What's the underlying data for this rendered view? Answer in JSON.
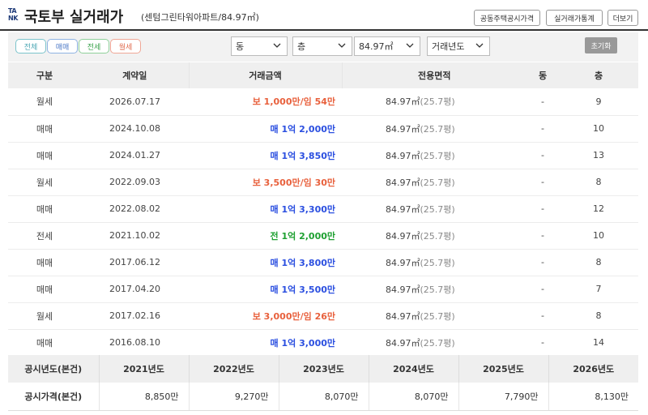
{
  "header": {
    "logo_top": "TA",
    "logo_bottom": "NK",
    "title": "국토부 실거래가",
    "subtitle": "(센텀그린타워아파트/84.97㎡)",
    "buttons": [
      "공동주택공시가격",
      "실거래가통계",
      "더보기"
    ]
  },
  "filters": {
    "chips": [
      {
        "label": "전체",
        "color": "#4ea8b5",
        "border": "#7cc4cc"
      },
      {
        "label": "매매",
        "color": "#4d7ac7",
        "border": "#8fb3e3"
      },
      {
        "label": "전세",
        "color": "#38a24a",
        "border": "#8fd09a"
      },
      {
        "label": "월세",
        "color": "#e06c50",
        "border": "#efa796"
      }
    ],
    "selects": {
      "dong": "동",
      "floor": "층",
      "area": "84.97㎡",
      "year": "거래년도"
    },
    "reset_label": "초기화"
  },
  "table": {
    "headers": [
      "구분",
      "계약일",
      "거래금액",
      "전용면적",
      "동",
      "층"
    ],
    "rows": [
      {
        "type": "월세",
        "date": "2026.07.17",
        "price": "보 1,000만/임 54만",
        "kind": "monthly",
        "area": "84.97㎡",
        "pyeong": "(25.7평)",
        "dong": "-",
        "floor": "9"
      },
      {
        "type": "매매",
        "date": "2024.10.08",
        "price": "매 1억 2,000만",
        "kind": "sale",
        "area": "84.97㎡",
        "pyeong": "(25.7평)",
        "dong": "-",
        "floor": "10"
      },
      {
        "type": "매매",
        "date": "2024.01.27",
        "price": "매 1억 3,850만",
        "kind": "sale",
        "area": "84.97㎡",
        "pyeong": "(25.7평)",
        "dong": "-",
        "floor": "13"
      },
      {
        "type": "월세",
        "date": "2022.09.03",
        "price": "보 3,500만/임 30만",
        "kind": "monthly",
        "area": "84.97㎡",
        "pyeong": "(25.7평)",
        "dong": "-",
        "floor": "8"
      },
      {
        "type": "매매",
        "date": "2022.08.02",
        "price": "매 1억 3,300만",
        "kind": "sale",
        "area": "84.97㎡",
        "pyeong": "(25.7평)",
        "dong": "-",
        "floor": "12"
      },
      {
        "type": "전세",
        "date": "2021.10.02",
        "price": "전 1억 2,000만",
        "kind": "jeonse",
        "area": "84.97㎡",
        "pyeong": "(25.7평)",
        "dong": "-",
        "floor": "10"
      },
      {
        "type": "매매",
        "date": "2017.06.12",
        "price": "매 1억 3,800만",
        "kind": "sale",
        "area": "84.97㎡",
        "pyeong": "(25.7평)",
        "dong": "-",
        "floor": "8"
      },
      {
        "type": "매매",
        "date": "2017.04.20",
        "price": "매 1억 3,500만",
        "kind": "sale",
        "area": "84.97㎡",
        "pyeong": "(25.7평)",
        "dong": "-",
        "floor": "7"
      },
      {
        "type": "월세",
        "date": "2017.02.16",
        "price": "보 3,000만/임 26만",
        "kind": "monthly",
        "area": "84.97㎡",
        "pyeong": "(25.7평)",
        "dong": "-",
        "floor": "8"
      },
      {
        "type": "매매",
        "date": "2016.08.10",
        "price": "매 1억 3,000만",
        "kind": "sale",
        "area": "84.97㎡",
        "pyeong": "(25.7평)",
        "dong": "-",
        "floor": "14"
      }
    ]
  },
  "summary": {
    "year_label": "공시년도(본건)",
    "price_label": "공시가격(본건)",
    "years": [
      "2021년도",
      "2022년도",
      "2023년도",
      "2024년도",
      "2025년도",
      "2026년도"
    ],
    "prices": [
      "8,850만",
      "9,270만",
      "8,070만",
      "8,070만",
      "7,790만",
      "8,130만"
    ]
  },
  "colors": {
    "monthly": "#e8603c",
    "sale": "#2b4fe0",
    "jeonse": "#1ea031"
  },
  "icons": {
    "select_chevron": "chevron-down-icon"
  }
}
